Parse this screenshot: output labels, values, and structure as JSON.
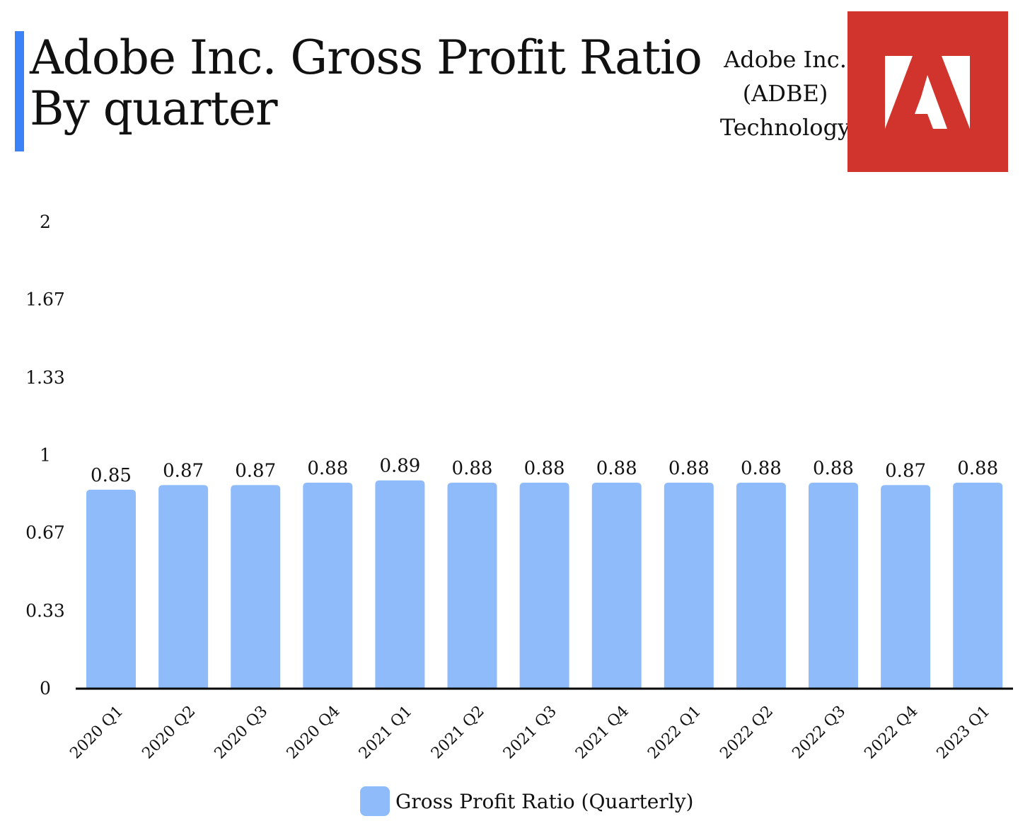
{
  "title_line1": "Adobe Inc. Gross Profit Ratio",
  "title_line2": "By quarter",
  "company": {
    "name": "Adobe Inc.",
    "ticker": "(ADBE)",
    "sector": "Technology",
    "logo_color": "#d0342c"
  },
  "colors": {
    "accent": "#3b82f6",
    "bar": "#8fbbfb"
  },
  "chart_data": {
    "type": "bar",
    "title": "Adobe Inc. Gross Profit Ratio By quarter",
    "xlabel": "",
    "ylabel": "",
    "ylim": [
      0,
      2
    ],
    "yticks": [
      "0",
      "0.33",
      "0.67",
      "1",
      "1.33",
      "1.67",
      "2"
    ],
    "ytick_values": [
      0,
      0.333,
      0.667,
      1,
      1.333,
      1.667,
      2
    ],
    "grid": false,
    "legend": "bottom-center",
    "categories": [
      "2020 Q1",
      "2020 Q2",
      "2020 Q3",
      "2020 Q4",
      "2021 Q1",
      "2021 Q2",
      "2021 Q3",
      "2021 Q4",
      "2022 Q1",
      "2022 Q2",
      "2022 Q3",
      "2022 Q4",
      "2023 Q1"
    ],
    "series": [
      {
        "name": "Gross Profit Ratio (Quarterly)",
        "values": [
          0.85,
          0.87,
          0.87,
          0.88,
          0.89,
          0.88,
          0.88,
          0.88,
          0.88,
          0.88,
          0.88,
          0.87,
          0.88
        ],
        "labels": [
          "0.85",
          "0.87",
          "0.87",
          "0.88",
          "0.89",
          "0.88",
          "0.88",
          "0.88",
          "0.88",
          "0.88",
          "0.88",
          "0.87",
          "0.88"
        ]
      }
    ]
  }
}
